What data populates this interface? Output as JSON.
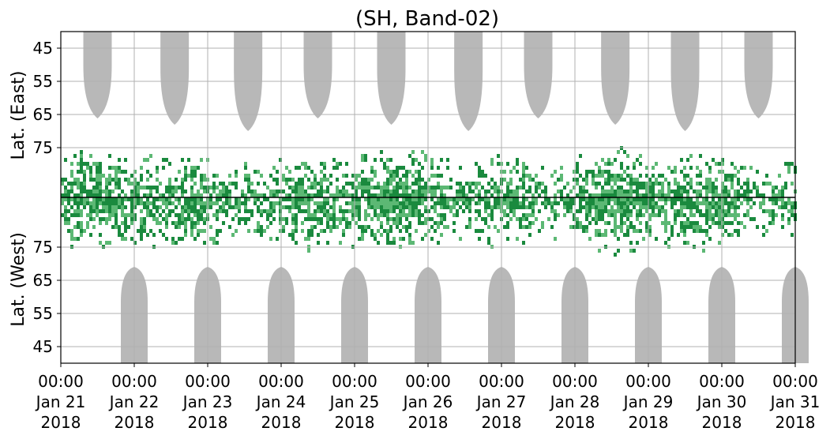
{
  "chart_data": {
    "type": "heatmap",
    "title": "(SH, Band-02)",
    "ylabel_top": "Lat. (East)",
    "ylabel_bottom": "Lat. (West)",
    "x_range_days": [
      "Jan 21 2018",
      "Jan 31 2018"
    ],
    "x_ticks": [
      {
        "time": "00:00",
        "date": "Jan 21",
        "year": "2018"
      },
      {
        "time": "00:00",
        "date": "Jan 22",
        "year": "2018"
      },
      {
        "time": "00:00",
        "date": "Jan 23",
        "year": "2018"
      },
      {
        "time": "00:00",
        "date": "Jan 24",
        "year": "2018"
      },
      {
        "time": "00:00",
        "date": "Jan 25",
        "year": "2018"
      },
      {
        "time": "00:00",
        "date": "Jan 26",
        "year": "2018"
      },
      {
        "time": "00:00",
        "date": "Jan 27",
        "year": "2018"
      },
      {
        "time": "00:00",
        "date": "Jan 28",
        "year": "2018"
      },
      {
        "time": "00:00",
        "date": "Jan 29",
        "year": "2018"
      },
      {
        "time": "00:00",
        "date": "Jan 30",
        "year": "2018"
      },
      {
        "time": "00:00",
        "date": "Jan 31",
        "year": "2018"
      }
    ],
    "y_ticks_top": [
      "45",
      "55",
      "65",
      "75"
    ],
    "y_ticks_bottom": [
      "75",
      "65",
      "55",
      "45"
    ],
    "y_range_top": [
      40,
      90
    ],
    "y_range_bottom": [
      90,
      40
    ],
    "colors": {
      "intense": "#1a8a3e",
      "moderate": "#5cb874",
      "coverage_gap": "#b8b8b8",
      "grid": "#b0b0b0",
      "divider": "#000000"
    },
    "grid": true
  }
}
